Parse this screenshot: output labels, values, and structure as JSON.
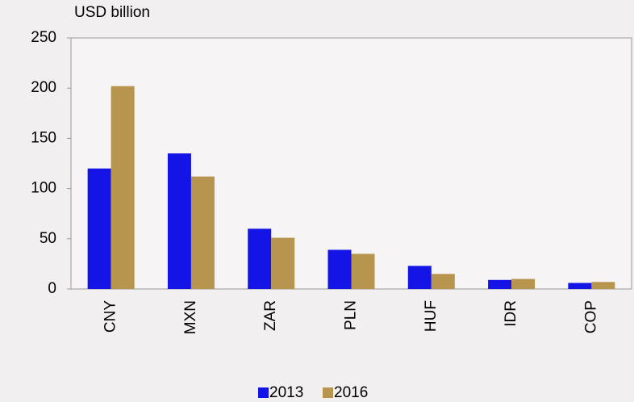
{
  "chart_data": {
    "type": "bar",
    "y_label": "USD billion",
    "categories": [
      "CNY",
      "MXN",
      "ZAR",
      "PLN",
      "HUF",
      "IDR",
      "COP"
    ],
    "series": [
      {
        "name": "2013",
        "color": "#1414e6",
        "values": [
          120,
          135,
          60,
          39,
          23,
          9,
          6
        ]
      },
      {
        "name": "2016",
        "color": "#b8954f",
        "values": [
          202,
          112,
          51,
          35,
          15,
          10,
          7
        ]
      }
    ],
    "ylim": [
      0,
      250
    ],
    "yticks": [
      0,
      50,
      100,
      150,
      200,
      250
    ],
    "legend": "bottom"
  }
}
